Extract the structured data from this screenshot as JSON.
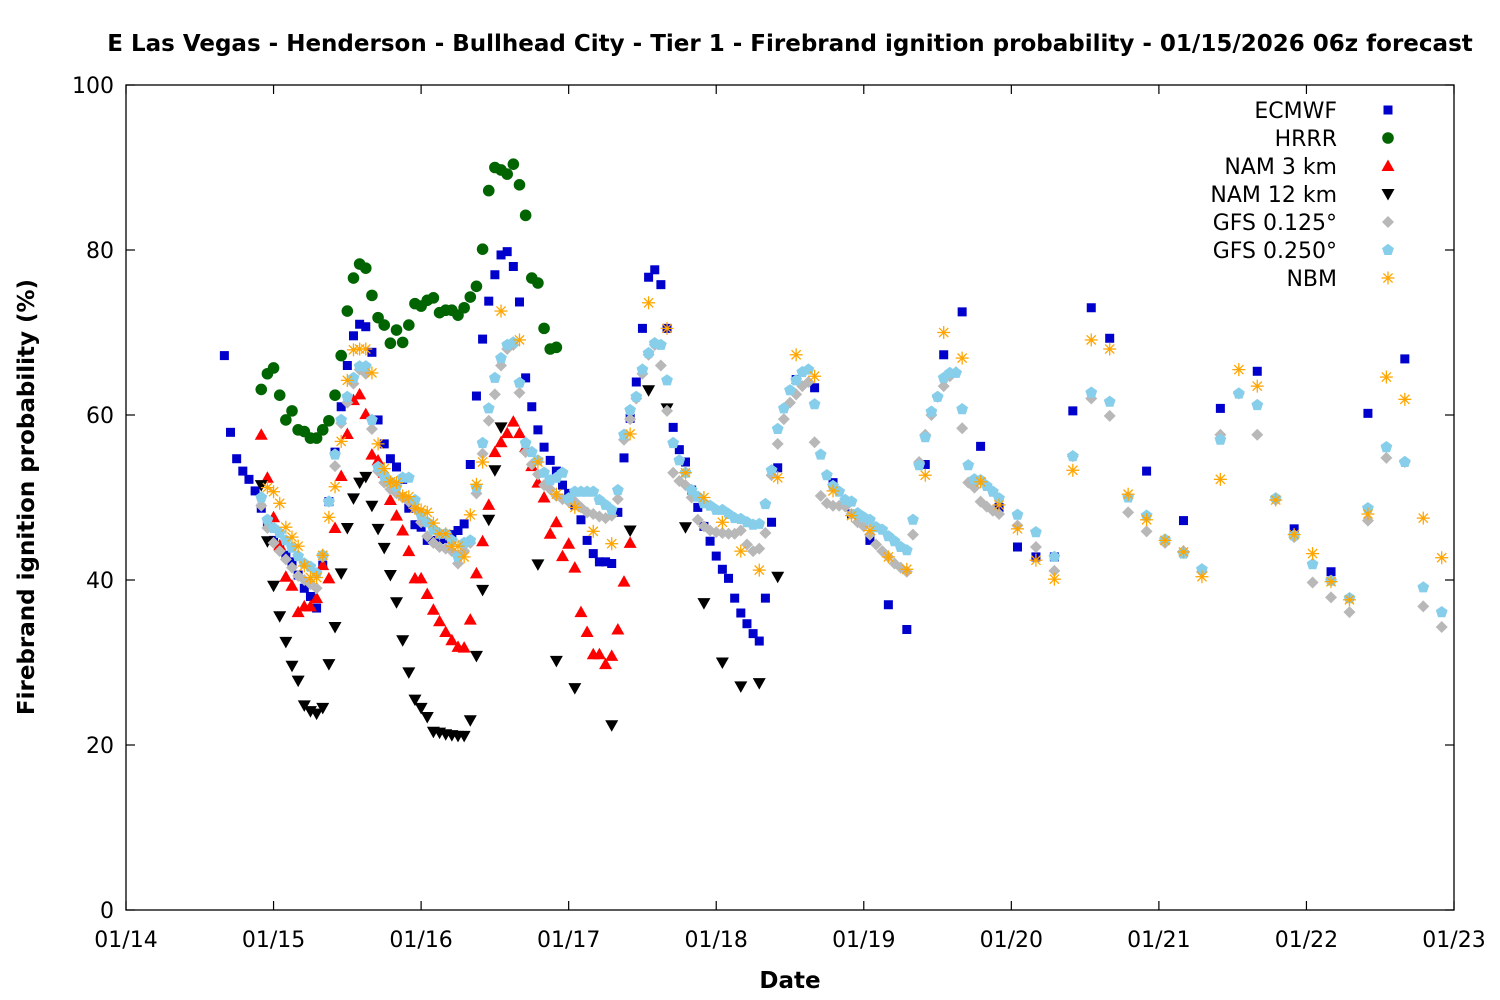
{
  "chart_data": {
    "type": "scatter",
    "title": "E Las Vegas - Henderson - Bullhead City - Tier 1 - Firebrand ignition probability - 01/15/2026 06z forecast",
    "xlabel": "Date",
    "ylabel": "Firebrand ignition probability (%)",
    "x_units": "hours since 01/14 00z",
    "xlim": [
      0,
      216
    ],
    "ylim": [
      0,
      100
    ],
    "x_ticks": [
      {
        "hour": 0,
        "label": "01/14"
      },
      {
        "hour": 24,
        "label": "01/15"
      },
      {
        "hour": 48,
        "label": "01/16"
      },
      {
        "hour": 72,
        "label": "01/17"
      },
      {
        "hour": 96,
        "label": "01/18"
      },
      {
        "hour": 120,
        "label": "01/19"
      },
      {
        "hour": 144,
        "label": "01/20"
      },
      {
        "hour": 168,
        "label": "01/21"
      },
      {
        "hour": 192,
        "label": "01/22"
      },
      {
        "hour": 216,
        "label": "01/23"
      }
    ],
    "y_ticks": [
      0,
      20,
      40,
      60,
      80,
      100
    ],
    "grid": false,
    "legend_position": "top-right",
    "series": [
      {
        "name": "ECMWF",
        "marker": "square",
        "color": "#0000cc",
        "segments": [
          {
            "start": 16,
            "step": 1,
            "values": [
              67.2,
              57.9,
              54.7,
              53.2,
              52.2,
              50.8,
              48.7,
              47,
              44.8,
              44,
              43,
              42.2,
              40.6,
              39,
              38,
              36.6,
              41.8,
              49.5,
              55.5,
              61,
              66,
              69.6,
              71,
              70.7,
              67.6,
              59.4,
              56.5,
              54.7,
              53.7,
              52.2,
              48.7,
              46.7,
              46.4,
              44.8,
              44.8,
              44.9,
              45,
              45.5,
              46,
              46.8,
              54,
              62.3,
              69.2,
              73.8,
              77,
              79.4,
              79.8,
              78,
              73.7,
              64.5,
              61,
              58.2,
              56.1,
              54.5,
              53.2,
              51.5,
              50.5,
              49.1,
              47.3,
              44.8,
              43.2,
              42.2,
              42.2,
              42,
              48.2,
              54.8,
              59.6,
              64,
              70.5,
              76.7,
              77.6,
              75.8,
              70.5,
              58.5,
              55.8,
              54.3,
              50.9,
              48.8,
              46.5,
              44.7,
              42.9,
              41.3,
              40.2,
              37.8,
              36,
              34.7,
              33.5,
              32.6,
              37.8,
              47,
              53.6
            ]
          },
          {
            "start": 109,
            "step": 3,
            "values": [
              64.3,
              63.3,
              51.8,
              48,
              44.8,
              37,
              34,
              54,
              67.3,
              72.5,
              56.2,
              48.8,
              44,
              42.8,
              42.8,
              60.5,
              73,
              69.3
            ]
          },
          {
            "start": 166,
            "step": 6,
            "values": [
              53.2,
              47.2,
              60.8,
              65.3,
              46.2,
              41,
              60.2,
              66.8
            ]
          }
        ]
      },
      {
        "name": "HRRR",
        "marker": "circle",
        "color": "#006400",
        "segments": [
          {
            "start": 22,
            "step": 1,
            "values": [
              63.1,
              65,
              65.7,
              62.4,
              59.4,
              60.5,
              58.2,
              58,
              57.2,
              57.2,
              58.2,
              59.3,
              62.4,
              67.2,
              72.6,
              76.6,
              78.3,
              77.8,
              74.5,
              71.8,
              70.9,
              68.7,
              70.3,
              68.8,
              70.9,
              73.5,
              73.2,
              73.9,
              74.2,
              72.4,
              72.7,
              72.7,
              72.1,
              73,
              74.3,
              75.6,
              80.1,
              87.2,
              90,
              89.7,
              89.2,
              90.4,
              87.9,
              84.2,
              76.6,
              76,
              70.5,
              68,
              68.2
            ]
          }
        ]
      },
      {
        "name": "NAM 3 km",
        "marker": "triangle-up",
        "color": "#ff0000",
        "segments": [
          {
            "start": 22,
            "step": 1,
            "values": [
              57.6,
              52.4,
              47.6,
              44.2,
              40.4,
              39.3,
              36.1,
              36.8,
              36.8,
              37.8,
              41.8,
              40.2,
              46.3,
              52.6,
              57.7,
              61.8,
              62.5,
              60.1,
              55.2,
              54.5,
              53,
              49.7,
              47.8,
              46,
              43.5,
              40.2,
              40.2,
              38.3,
              36.4,
              35,
              33.7,
              32.7,
              31.9,
              31.8,
              35.2,
              40.8,
              44.7,
              49.1,
              55.5,
              56.7,
              57.8,
              59.2,
              57.8,
              56.1,
              53.8,
              51.8,
              50,
              45.6,
              47,
              42.9,
              44.4,
              41.5,
              36.1,
              33.7,
              31,
              31,
              29.8,
              30.8,
              34,
              39.8,
              44.5
            ]
          }
        ]
      },
      {
        "name": "NAM 12 km",
        "marker": "triangle-down",
        "color": "#000000",
        "segments": [
          {
            "start": 22,
            "step": 1,
            "values": [
              51.5,
              44.7,
              39.3,
              35.6,
              32.5,
              29.6,
              27.8,
              24.8,
              24.1,
              23.8,
              24.5,
              29.8,
              34.3,
              40.8,
              46.3,
              49.9,
              51.8,
              52.5,
              49,
              46.2,
              43.9,
              40.6,
              37.3,
              32.7,
              28.8,
              25.5,
              24.5,
              23.4,
              21.6,
              21.5,
              21.3,
              21.2,
              21.1,
              21.1,
              23,
              30.8,
              38.8,
              47.3,
              53.3,
              58.5
            ]
          },
          {
            "start": 67,
            "step": 3,
            "values": [
              41.9,
              30.2,
              26.9
            ]
          },
          {
            "start": 79,
            "step": 3,
            "values": [
              22.4,
              46,
              63,
              60.8,
              46.4,
              37.2,
              30,
              27.1,
              27.5,
              40.4
            ]
          }
        ]
      },
      {
        "name": "GFS 0.125°",
        "marker": "diamond",
        "color": "#b8b8b8",
        "segments": [
          {
            "start": 22,
            "step": 1,
            "values": [
              49,
              46.3,
              44.5,
              43.5,
              42.5,
              41.5,
              40.5,
              40,
              39.5,
              39,
              42.8,
              49.5,
              53.8,
              59,
              61.5,
              63.8,
              65.5,
              65,
              58.3,
              53.2,
              51.8,
              51,
              50.5,
              50,
              49.5,
              48.7,
              47,
              45.3,
              44.5,
              44,
              43.8,
              43.5,
              42,
              43.5,
              44.5,
              50.5,
              55.3,
              59.3,
              62.5,
              66,
              68,
              68.5,
              62.7,
              55.5,
              54,
              52.8,
              51.5,
              51,
              50.2,
              49.8,
              49.5,
              49.5,
              48.8,
              48.2,
              48,
              47.7,
              47.5,
              47.8,
              49.8,
              57,
              59.5,
              62,
              65,
              67.3,
              68.5,
              66,
              60.5,
              53,
              52,
              51.5,
              50,
              47.3,
              46.5,
              46,
              45.8,
              45.7,
              45.6,
              45.6,
              46,
              44.3,
              43.5,
              43.8,
              45.7,
              52.7,
              56.5
            ]
          },
          {
            "start": 107,
            "step": 1,
            "values": [
              59.5,
              61.5,
              62.5,
              63.5,
              64,
              56.7,
              50.2,
              49.3,
              49,
              49,
              48.9,
              48,
              47,
              46.5,
              45.5,
              44.3,
              43.5,
              42.8,
              42,
              41.5,
              41,
              45.5,
              54.3,
              57.6,
              60,
              62.2,
              63.5,
              64.7,
              65.2,
              58.4,
              51.8,
              51.2,
              49.5,
              48.9,
              48.4,
              48
            ]
          },
          {
            "start": 145,
            "step": 3,
            "values": [
              46.6,
              44,
              41.1,
              55,
              62,
              59.9,
              48.2,
              45.9,
              44.5,
              43.5,
              41,
              57.6,
              62.6,
              57.6,
              49.7,
              45.2,
              39.7,
              37.9,
              36.1,
              47.2,
              54.8,
              54.3,
              36.8,
              34.3
            ]
          }
        ]
      },
      {
        "name": "GFS 0.250°",
        "marker": "pentagon",
        "color": "#87ceeb",
        "segments": [
          {
            "start": 22,
            "step": 1,
            "values": [
              50,
              47.3,
              46.3,
              45.7,
              44.8,
              43.9,
              42.9,
              42,
              41.6,
              40.8,
              43,
              49.5,
              55.2,
              59.4,
              62.2,
              64.5,
              65.9,
              65.9,
              59.4,
              53.7,
              52.6,
              51.9,
              51.3,
              52.4,
              52.4,
              49.7,
              47.9,
              47,
              46.1,
              45.6,
              45.6,
              44.8,
              42.8,
              44.5,
              44.8,
              51.2,
              56.6,
              60.8,
              64.5,
              66.9,
              68.5,
              68.8,
              63.9,
              56.6,
              55.5,
              54.5,
              53,
              52.1,
              52.4,
              53,
              49.9,
              50.7,
              50.7,
              50.7,
              50.7,
              49.7,
              49.1,
              48.5,
              50.9,
              57.6,
              60.6,
              62.2,
              65.5,
              67.5,
              68.7,
              68.5,
              64.2,
              56.6,
              54.5,
              53,
              50.9,
              50.1,
              49.3,
              49,
              48.5,
              48.5,
              48,
              47.5,
              47.4,
              47,
              46.7,
              46.8,
              49.2,
              53.3,
              58.3
            ]
          },
          {
            "start": 107,
            "step": 1,
            "values": [
              60.8,
              63,
              64.2,
              65.2,
              65.5,
              61.3,
              55.2,
              52.7,
              51.4,
              50.7,
              49.7,
              49.5,
              48.1,
              47.6,
              47.3,
              46.4,
              46.1,
              45.3,
              44.7,
              44,
              43.6,
              47.3,
              53.9,
              57.3,
              60.4,
              62.2,
              64.5,
              65.1,
              65.1,
              60.7,
              53.9,
              52.2,
              52.1,
              51.4,
              50.7,
              49.9
            ]
          },
          {
            "start": 145,
            "step": 3,
            "values": [
              47.9,
              45.8,
              42.8,
              55,
              62.7,
              61.6,
              50,
              47.8,
              44.9,
              43.2,
              41.3,
              57,
              62.6,
              61.2,
              49.9,
              45.4,
              41.9,
              39.9,
              37.8,
              48.7,
              56.1,
              54.3,
              39.1,
              36.1
            ]
          }
        ]
      },
      {
        "name": "NBM",
        "marker": "asterisk",
        "color": "#ffa500",
        "segments": [
          {
            "start": 23,
            "step": 1,
            "values": [
              51.2,
              50.7,
              49.3,
              46.4,
              45.2,
              44.1,
              41.7,
              40.3,
              40.3,
              43,
              47.6,
              51.3,
              56.8,
              64.2,
              67.9,
              68,
              68,
              65.1,
              56.5,
              53.5,
              51.9,
              51.8,
              50.2,
              50.1,
              48.7,
              48.5,
              48.2,
              46.9,
              45.6,
              45.6,
              44.1,
              44.1,
              42.8,
              47.9,
              51.6,
              54.3
            ]
          },
          {
            "start": 61,
            "step": 3,
            "values": [
              72.6,
              69.1,
              54.3,
              50.4,
              48.8,
              45.9,
              44.4,
              57.7,
              73.6,
              70.5,
              53,
              50,
              47,
              43.5,
              41.2,
              52.4,
              67.3,
              64.7,
              50.8,
              47.8,
              46,
              42.8,
              41.3,
              52.7,
              70,
              66.9,
              51.9,
              49.1,
              46.2,
              42.4,
              40.1,
              53.3,
              69.1,
              68,
              50.4,
              47.3,
              44.8,
              43.4,
              40.4,
              52.2,
              65.5,
              63.5,
              49.7,
              45.5,
              43.2,
              39.8,
              37.6,
              48,
              64.6,
              61.9,
              47.5,
              42.7
            ]
          }
        ]
      }
    ]
  }
}
